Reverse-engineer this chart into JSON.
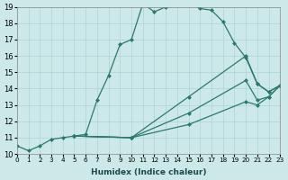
{
  "xlabel": "Humidex (Indice chaleur)",
  "xlim": [
    0,
    23
  ],
  "ylim": [
    10,
    19
  ],
  "bg_color": "#cce8e8",
  "grid_color": "#add4d4",
  "line_color": "#2a7a6a",
  "line1_x": [
    0,
    1,
    2,
    3,
    4,
    5,
    6,
    7,
    8,
    9,
    10,
    11,
    12,
    13,
    14,
    15,
    16,
    17,
    18,
    19,
    20,
    21,
    22,
    23
  ],
  "line1_y": [
    10.5,
    10.2,
    10.5,
    10.9,
    11.0,
    11.1,
    11.2,
    13.3,
    14.8,
    16.7,
    17.0,
    19.2,
    18.7,
    19.0,
    19.3,
    19.3,
    18.9,
    18.8,
    18.1,
    16.8,
    15.9,
    14.3,
    13.8,
    14.2
  ],
  "line2_x": [
    5,
    10,
    15,
    20,
    21,
    22,
    23
  ],
  "line2_y": [
    11.1,
    11.0,
    13.5,
    16.0,
    14.3,
    13.8,
    14.2
  ],
  "line3_x": [
    5,
    10,
    15,
    20,
    21,
    22,
    23
  ],
  "line3_y": [
    11.1,
    11.0,
    12.5,
    14.5,
    13.3,
    13.5,
    14.2
  ],
  "line4_x": [
    5,
    10,
    15,
    20,
    21,
    22,
    23
  ],
  "line4_y": [
    11.1,
    11.0,
    11.8,
    13.2,
    13.0,
    13.5,
    14.2
  ],
  "xticks": [
    0,
    1,
    2,
    3,
    4,
    5,
    6,
    7,
    8,
    9,
    10,
    11,
    12,
    13,
    14,
    15,
    16,
    17,
    18,
    19,
    20,
    21,
    22,
    23
  ],
  "yticks": [
    10,
    11,
    12,
    13,
    14,
    15,
    16,
    17,
    18,
    19
  ]
}
